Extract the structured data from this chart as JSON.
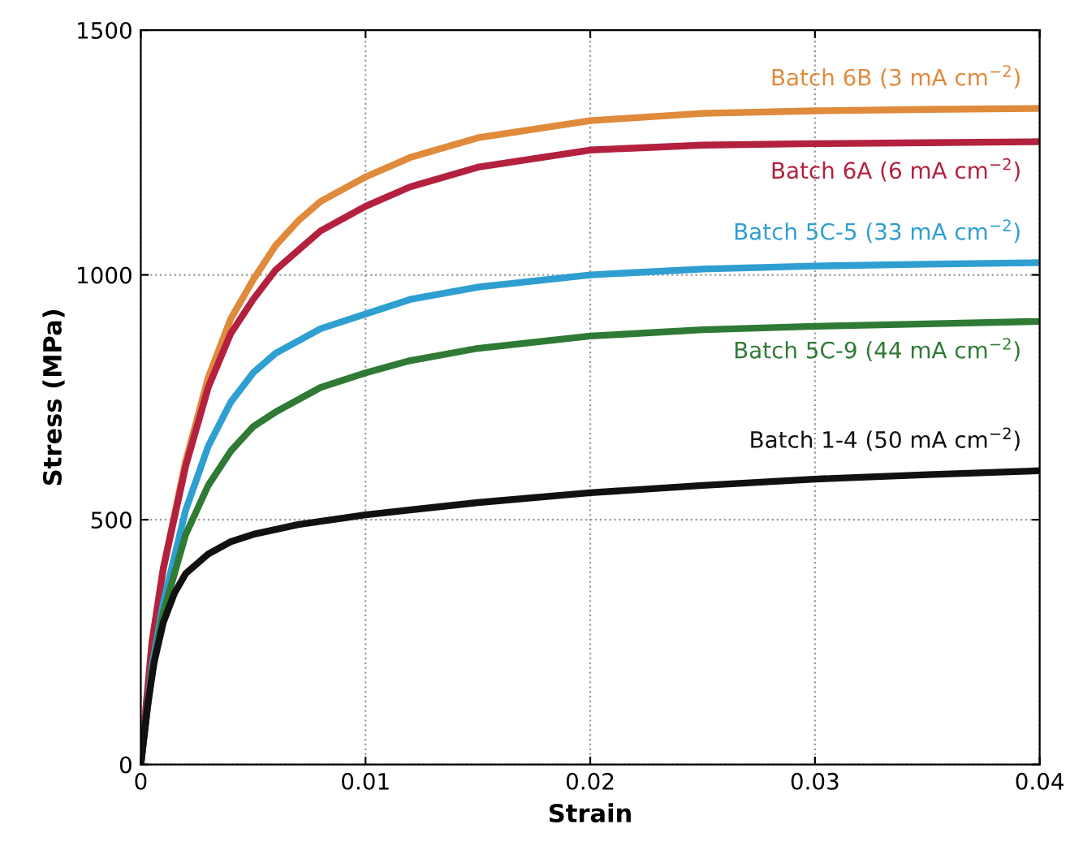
{
  "chart_data": {
    "type": "line",
    "xlabel": "Strain",
    "ylabel": "Stress (MPa)",
    "xlim": [
      0,
      0.04
    ],
    "ylim": [
      0,
      1500
    ],
    "xticks": [
      0,
      0.01,
      0.02,
      0.03,
      0.04
    ],
    "yticks": [
      0,
      500,
      1000,
      1500
    ],
    "grid": true,
    "legend": false,
    "series": [
      {
        "name": "Batch 6B (3 mA cm$^{−2}$)",
        "color": "#e08a3c",
        "x": [
          0,
          0.0005,
          0.001,
          0.002,
          0.003,
          0.004,
          0.005,
          0.006,
          0.007,
          0.008,
          0.01,
          0.012,
          0.015,
          0.02,
          0.025,
          0.03,
          0.035,
          0.04
        ],
        "values": [
          0,
          250,
          400,
          620,
          790,
          910,
          990,
          1060,
          1110,
          1150,
          1200,
          1240,
          1280,
          1315,
          1330,
          1335,
          1338,
          1340
        ]
      },
      {
        "name": "Batch 6A (6 mA cm$^{−2}$)",
        "color": "#b3213f",
        "x": [
          0,
          0.0005,
          0.001,
          0.002,
          0.003,
          0.004,
          0.005,
          0.006,
          0.007,
          0.008,
          0.01,
          0.012,
          0.015,
          0.02,
          0.025,
          0.03,
          0.035,
          0.04
        ],
        "values": [
          0,
          250,
          400,
          610,
          770,
          880,
          950,
          1010,
          1050,
          1090,
          1140,
          1180,
          1220,
          1255,
          1265,
          1268,
          1270,
          1272
        ]
      },
      {
        "name": "Batch 5C-5 (33 mA cm$^{−2}$)",
        "color": "#2e9fd0",
        "x": [
          0,
          0.0005,
          0.001,
          0.002,
          0.003,
          0.004,
          0.005,
          0.006,
          0.008,
          0.01,
          0.012,
          0.015,
          0.02,
          0.025,
          0.03,
          0.035,
          0.04
        ],
        "values": [
          0,
          200,
          330,
          520,
          650,
          740,
          800,
          840,
          890,
          920,
          950,
          975,
          1000,
          1012,
          1018,
          1022,
          1025
        ]
      },
      {
        "name": "Batch 5C-9 (44 mA cm$^{−2}$)",
        "color": "#2f7a35",
        "x": [
          0,
          0.0005,
          0.001,
          0.002,
          0.003,
          0.004,
          0.005,
          0.006,
          0.008,
          0.01,
          0.012,
          0.015,
          0.02,
          0.025,
          0.03,
          0.035,
          0.04
        ],
        "values": [
          0,
          190,
          310,
          470,
          570,
          640,
          690,
          720,
          770,
          800,
          825,
          850,
          875,
          888,
          895,
          900,
          905
        ]
      },
      {
        "name": "Batch 1-4 (50 mA cm$^{−2}$)",
        "color": "#111111",
        "x": [
          0,
          0.0003,
          0.0006,
          0.001,
          0.0015,
          0.002,
          0.003,
          0.004,
          0.005,
          0.007,
          0.01,
          0.015,
          0.02,
          0.025,
          0.03,
          0.035,
          0.04
        ],
        "values": [
          0,
          120,
          210,
          290,
          350,
          390,
          430,
          455,
          470,
          490,
          510,
          535,
          555,
          570,
          583,
          592,
          600
        ]
      }
    ]
  }
}
